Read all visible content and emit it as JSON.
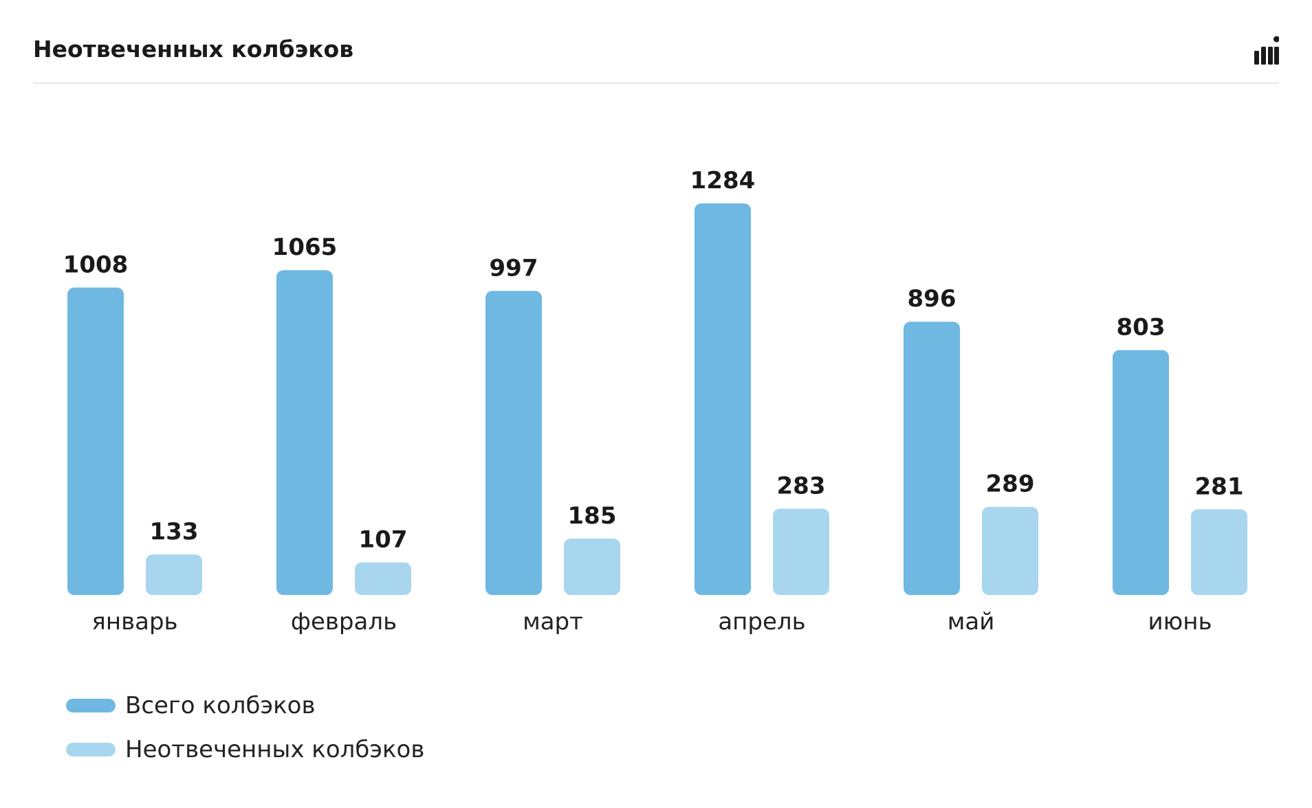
{
  "header": {
    "title": "Неотвеченных колбэков"
  },
  "icons": {
    "chart_toggle": "bar-chart-icon"
  },
  "colors": {
    "total": "#6fb8e2",
    "unanswered": "#a8d6ee",
    "text": "#1a1a1a",
    "divider": "#e6e6e6"
  },
  "chart_data": {
    "type": "bar",
    "categories": [
      "январь",
      "февраль",
      "март",
      "апрель",
      "май",
      "июнь"
    ],
    "series": [
      {
        "name": "Всего колбэков",
        "values": [
          1008,
          1065,
          997,
          1284,
          896,
          803
        ]
      },
      {
        "name": "Неотвеченных колбэков",
        "values": [
          133,
          107,
          185,
          283,
          289,
          281
        ]
      }
    ],
    "title": "Неотвеченных колбэков",
    "xlabel": "",
    "ylabel": "",
    "ylim": [
      0,
      1284
    ],
    "grid": false,
    "legend": "bottom-left",
    "data_labels": true
  },
  "legend": {
    "items": [
      {
        "label": "Всего колбэков"
      },
      {
        "label": "Неотвеченных колбэков"
      }
    ]
  }
}
